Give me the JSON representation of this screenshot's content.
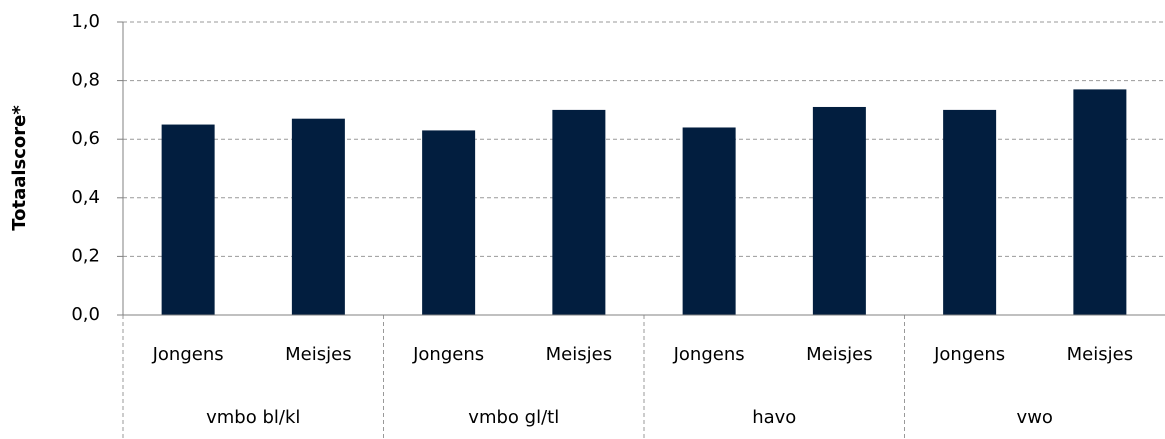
{
  "chart_data": {
    "type": "bar",
    "ylabel": "Totaalscore*",
    "categories": [
      "Jongens",
      "Meisjes",
      "Jongens",
      "Meisjes",
      "Jongens",
      "Meisjes",
      "Jongens",
      "Meisjes"
    ],
    "groups": [
      "vmbo bl/kl",
      "vmbo gl/tl",
      "havo",
      "vwo"
    ],
    "values": [
      0.65,
      0.67,
      0.63,
      0.7,
      0.64,
      0.71,
      0.7,
      0.77
    ],
    "color": "#021e3f",
    "ylim": [
      0,
      1
    ],
    "yticks": [
      {
        "value": 0,
        "label": "0,0"
      },
      {
        "value": 0.2,
        "label": "0,2"
      },
      {
        "value": 0.4,
        "label": "0,4"
      },
      {
        "value": 0.6,
        "label": "0,6"
      },
      {
        "value": 0.8,
        "label": "0,8"
      },
      {
        "value": 1,
        "label": "1,0"
      }
    ],
    "grid": true
  }
}
